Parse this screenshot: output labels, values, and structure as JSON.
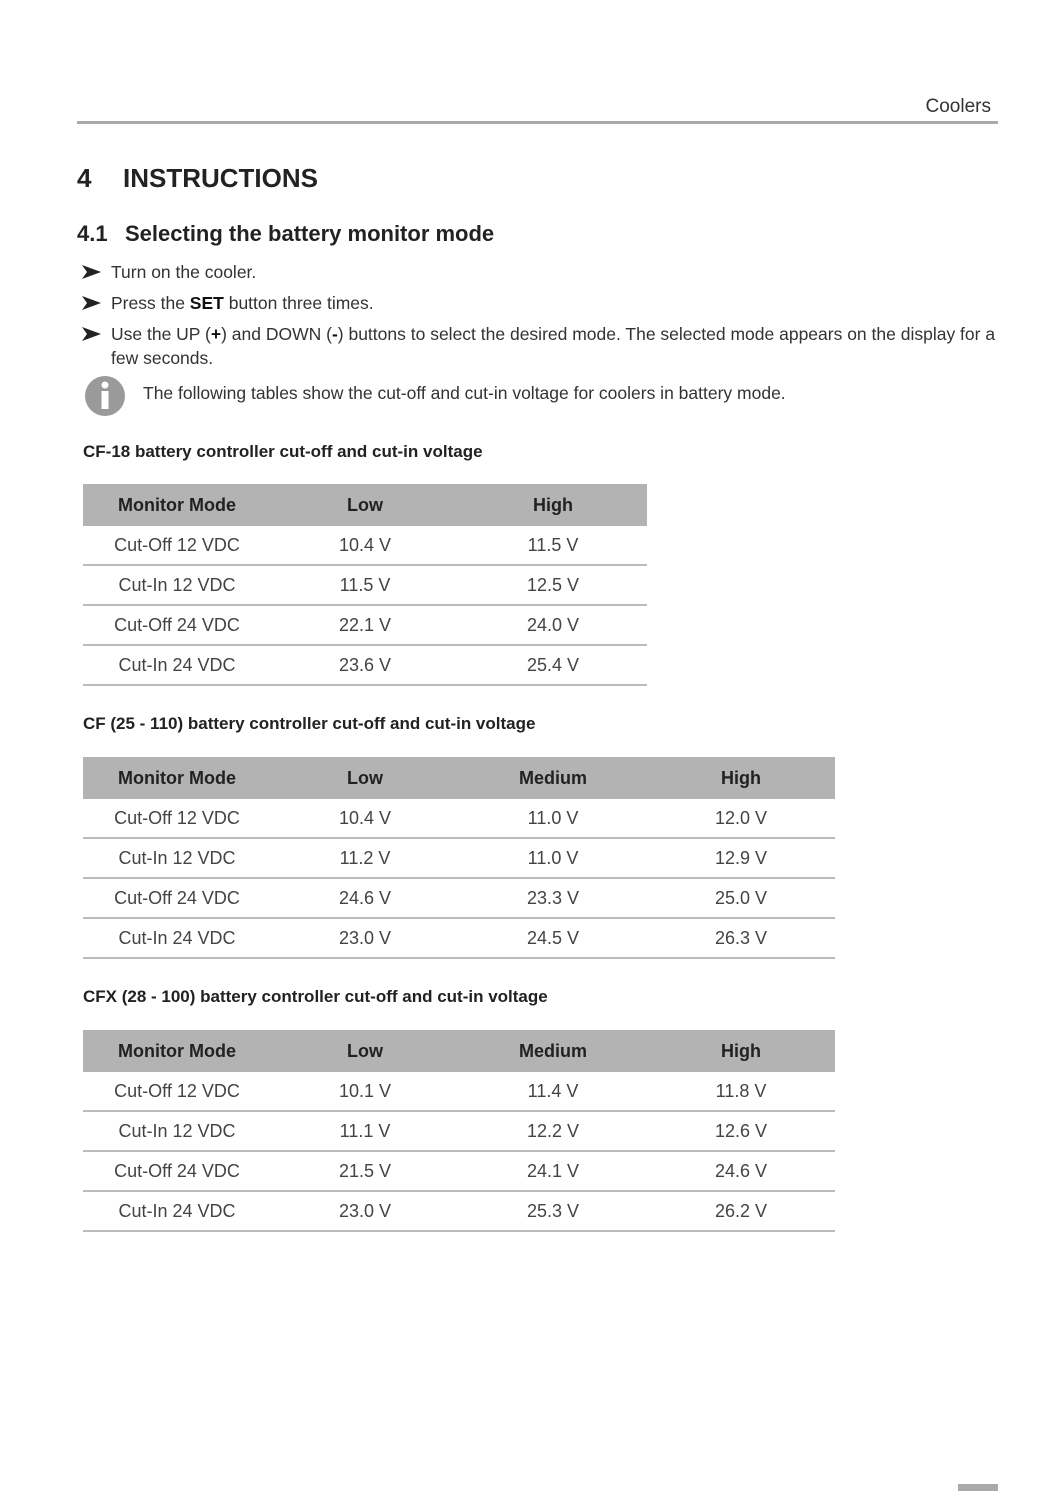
{
  "header": {
    "label": "Coolers"
  },
  "section": {
    "number": "4",
    "title": "INSTRUCTIONS"
  },
  "subsection": {
    "number": "4.1",
    "title": "Selecting the battery monitor mode"
  },
  "steps": [
    {
      "runs": [
        {
          "text": "Turn on the cooler."
        }
      ]
    },
    {
      "runs": [
        {
          "text": "Press the "
        },
        {
          "text": "SET",
          "bold": true
        },
        {
          "text": " button three times."
        }
      ]
    },
    {
      "runs": [
        {
          "text": "Use the UP ("
        },
        {
          "text": "+",
          "bold": true
        },
        {
          "text": ") and DOWN ("
        },
        {
          "text": "-",
          "bold": true
        },
        {
          "text": ") buttons to select the desired mode. The selected mode appears on the display for a few seconds."
        }
      ]
    }
  ],
  "note": "The following tables show the cut-off and cut-in voltage for coolers in battery mode.",
  "tables": [
    {
      "caption": "CF-18 battery controller cut-off and cut-in voltage",
      "header": [
        "Monitor Mode",
        "Low",
        "High"
      ],
      "rows": [
        [
          "Cut-Off 12 VDC",
          "10.4 V",
          "11.5 V"
        ],
        [
          "Cut-In 12 VDC",
          "11.5 V",
          "12.5 V"
        ],
        [
          "Cut-Off 24 VDC",
          "22.1 V",
          "24.0 V"
        ],
        [
          "Cut-In 24 VDC",
          "23.6 V",
          "25.4 V"
        ]
      ]
    },
    {
      "caption": "CF (25 - 110) battery controller cut-off and cut-in voltage",
      "header": [
        "Monitor Mode",
        "Low",
        "Medium",
        "High"
      ],
      "rows": [
        [
          "Cut-Off 12 VDC",
          "10.4 V",
          "11.0 V",
          "12.0 V"
        ],
        [
          "Cut-In 12 VDC",
          "11.2 V",
          "11.0 V",
          "12.9 V"
        ],
        [
          "Cut-Off 24 VDC",
          "24.6 V",
          "23.3 V",
          "25.0 V"
        ],
        [
          "Cut-In 24 VDC",
          "23.0 V",
          "24.5 V",
          "26.3 V"
        ]
      ]
    },
    {
      "caption": "CFX (28 - 100) battery controller cut-off and cut-in voltage",
      "header": [
        "Monitor Mode",
        "Low",
        "Medium",
        "High"
      ],
      "rows": [
        [
          "Cut-Off 12 VDC",
          "10.1 V",
          "11.4 V",
          "11.8 V"
        ],
        [
          "Cut-In 12 VDC",
          "11.1 V",
          "12.2 V",
          "12.6 V"
        ],
        [
          "Cut-Off 24 VDC",
          "21.5 V",
          "24.1 V",
          "24.6 V"
        ],
        [
          "Cut-In 24 VDC",
          "23.0 V",
          "25.3 V",
          "26.2 V"
        ]
      ]
    }
  ]
}
